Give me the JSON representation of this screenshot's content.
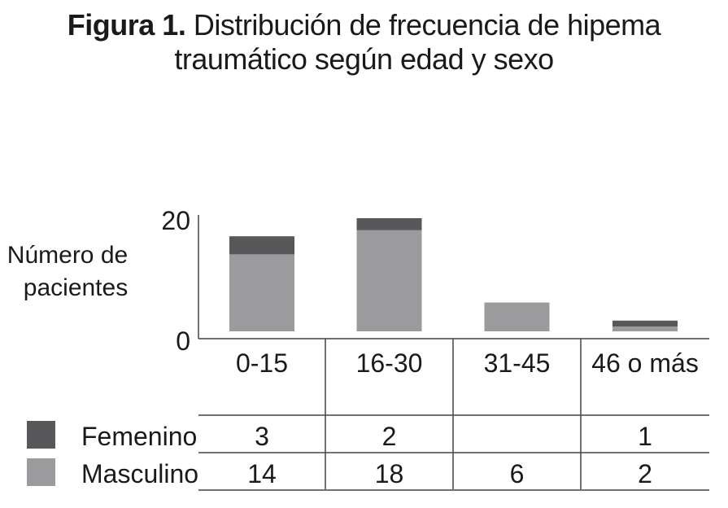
{
  "figure": {
    "label": "Figura 1.",
    "title_line1": "Distribución de frecuencia de hipema",
    "title_line2": "traumático según edad y sexo"
  },
  "chart_data": {
    "type": "bar",
    "stacked": true,
    "categories": [
      "0-15",
      "16-30",
      "31-45",
      "46 o más"
    ],
    "series": [
      {
        "name": "Masculino",
        "values": [
          14,
          18,
          6,
          2
        ],
        "table_values": [
          "14",
          "18",
          "6",
          "2"
        ],
        "color": "#9b9b9d"
      },
      {
        "name": "Femenino",
        "values": [
          3,
          2,
          0,
          1
        ],
        "table_values": [
          "3",
          "2",
          "",
          "1"
        ],
        "color": "#58585a"
      }
    ],
    "ylabel": "Número de pacientes",
    "ylim": [
      0,
      20
    ],
    "yticks": [
      "0",
      "20"
    ],
    "grid": false,
    "legend": "table-bottom-left"
  }
}
